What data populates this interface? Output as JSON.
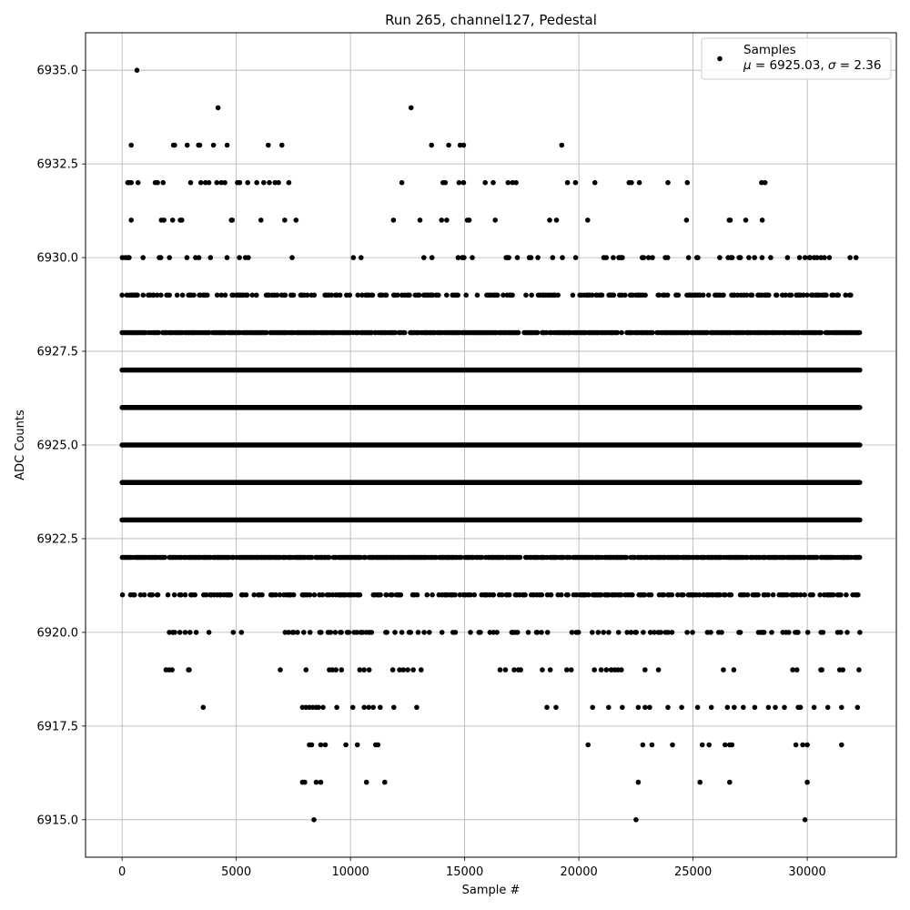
{
  "chart_data": {
    "type": "scatter",
    "title": "Run 265, channel127, Pedestal",
    "xlabel": "Sample #",
    "ylabel": "ADC Counts",
    "xlim": [
      -1600,
      33900
    ],
    "ylim": [
      6914,
      6936
    ],
    "xticks": [
      0,
      5000,
      10000,
      15000,
      20000,
      25000,
      30000
    ],
    "xtick_labels": [
      "0",
      "5000",
      "10000",
      "15000",
      "20000",
      "25000",
      "30000"
    ],
    "yticks": [
      6915.0,
      6917.5,
      6920.0,
      6922.5,
      6925.0,
      6927.5,
      6930.0,
      6932.5,
      6935.0
    ],
    "ytick_labels": [
      "6915.0",
      "6917.5",
      "6920.0",
      "6922.5",
      "6925.0",
      "6927.5",
      "6930.0",
      "6932.5",
      "6935.0"
    ],
    "grid": true,
    "legend": {
      "position": "top-right",
      "label": "Samples",
      "stats_mu_symbol": "μ",
      "stats_mu_value": " = 6925.03, ",
      "stats_sigma_symbol": "σ",
      "stats_sigma_value": " = 2.36"
    },
    "marker_color": "#000000",
    "series": [
      {
        "name": "Samples",
        "x_range": [
          0,
          32300
        ],
        "level_samples": [
          {
            "y": 6935,
            "x": [
              650
            ]
          },
          {
            "y": 6934,
            "x": [
              4200,
              12650
            ]
          },
          {
            "y": 6933,
            "x": [
              400,
              2250,
              2300,
              2850,
              3350,
              3400,
              4000,
              4600,
              6400,
              7000,
              13550,
              14300,
              14800,
              14950,
              19250
            ]
          },
          {
            "y": 6932,
            "x": [
              250,
              300,
              400,
              700,
              1450,
              1550,
              1800,
              3000,
              3450,
              3650,
              3800,
              4150,
              4350,
              4500,
              5050,
              5150,
              5500,
              5900,
              6200,
              6450,
              6700,
              6850,
              7300,
              12250,
              14050,
              14150,
              14750,
              14950,
              15900,
              16250,
              16900,
              17100,
              17250,
              19500,
              19850,
              20700,
              22200,
              22300,
              22650,
              23900,
              24750,
              28000,
              28150
            ]
          }
        ],
        "dense_levels": [
          {
            "y": 6931,
            "segments": [
              [
                200,
                7650
              ],
              [
                10200,
                10300
              ],
              [
                11800,
                12000
              ],
              [
                12950,
                17800
              ],
              [
                18700,
                22600
              ],
              [
                22900,
                25000
              ],
              [
                26200,
                28800
              ],
              [
                29400,
                29600
              ],
              [
                30700,
                30900
              ],
              [
                31800,
                31900
              ]
            ],
            "density": 0.08
          },
          {
            "y": 6930,
            "segments": [
              [
                0,
                7600
              ],
              [
                9200,
                10500
              ],
              [
                11700,
                32200
              ]
            ],
            "density": 0.18
          },
          {
            "y": 6929,
            "segments": [
              [
                0,
                8400
              ],
              [
                8800,
                32200
              ]
            ],
            "density": 0.45
          },
          {
            "y": 6928,
            "segments": [
              [
                0,
                32300
              ]
            ],
            "density": 0.85
          },
          {
            "y": 6927,
            "segments": [
              [
                0,
                32300
              ]
            ],
            "density": 1.0
          },
          {
            "y": 6926,
            "segments": [
              [
                0,
                32300
              ]
            ],
            "density": 1.0
          },
          {
            "y": 6925,
            "segments": [
              [
                0,
                32300
              ]
            ],
            "density": 1.0
          },
          {
            "y": 6924,
            "segments": [
              [
                0,
                32300
              ]
            ],
            "density": 1.0
          },
          {
            "y": 6923,
            "segments": [
              [
                0,
                32300
              ]
            ],
            "density": 1.0
          },
          {
            "y": 6922,
            "segments": [
              [
                0,
                32300
              ]
            ],
            "density": 0.85
          },
          {
            "y": 6921,
            "segments": [
              [
                0,
                32300
              ]
            ],
            "density": 0.45
          },
          {
            "y": 6920,
            "segments": [
              [
                1100,
                1200
              ],
              [
                1800,
                4000
              ],
              [
                4800,
                5300
              ],
              [
                6100,
                6300
              ],
              [
                6900,
                32300
              ]
            ],
            "density": 0.22
          },
          {
            "y": 6919,
            "segments": [
              [
                1100,
                1150
              ],
              [
                1800,
                3100
              ],
              [
                6900,
                7000
              ],
              [
                7800,
                13200
              ],
              [
                14400,
                14450
              ],
              [
                15700,
                17500
              ],
              [
                18200,
                32300
              ]
            ],
            "density": 0.12
          }
        ],
        "sparse_levels": [
          {
            "y": 6918,
            "x": [
              3550,
              7900,
              8050,
              8200,
              8350,
              8500,
              8600,
              8800,
              9400,
              10100,
              10600,
              10800,
              11000,
              11300,
              11900,
              12900,
              18600,
              19000,
              20600,
              21300,
              21900,
              22600,
              22900,
              23100,
              23900,
              24500,
              25200,
              25800,
              26500,
              26800,
              27200,
              27700,
              28300,
              28600,
              29000,
              29600,
              29700,
              30300,
              30900,
              31500,
              32200
            ]
          },
          {
            "y": 6917,
            "x": [
              8200,
              8300,
              8700,
              8900,
              9800,
              10300,
              11100,
              11200,
              20400,
              22800,
              23200,
              24100,
              25400,
              25700,
              26400,
              26600,
              26700,
              29500,
              29800,
              30000,
              31500
            ]
          },
          {
            "y": 6916,
            "x": [
              7900,
              8000,
              8500,
              8700,
              10700,
              11500,
              22600,
              25300,
              26600,
              30000
            ]
          },
          {
            "y": 6915,
            "x": [
              8400,
              22500,
              29900
            ]
          }
        ]
      }
    ]
  }
}
